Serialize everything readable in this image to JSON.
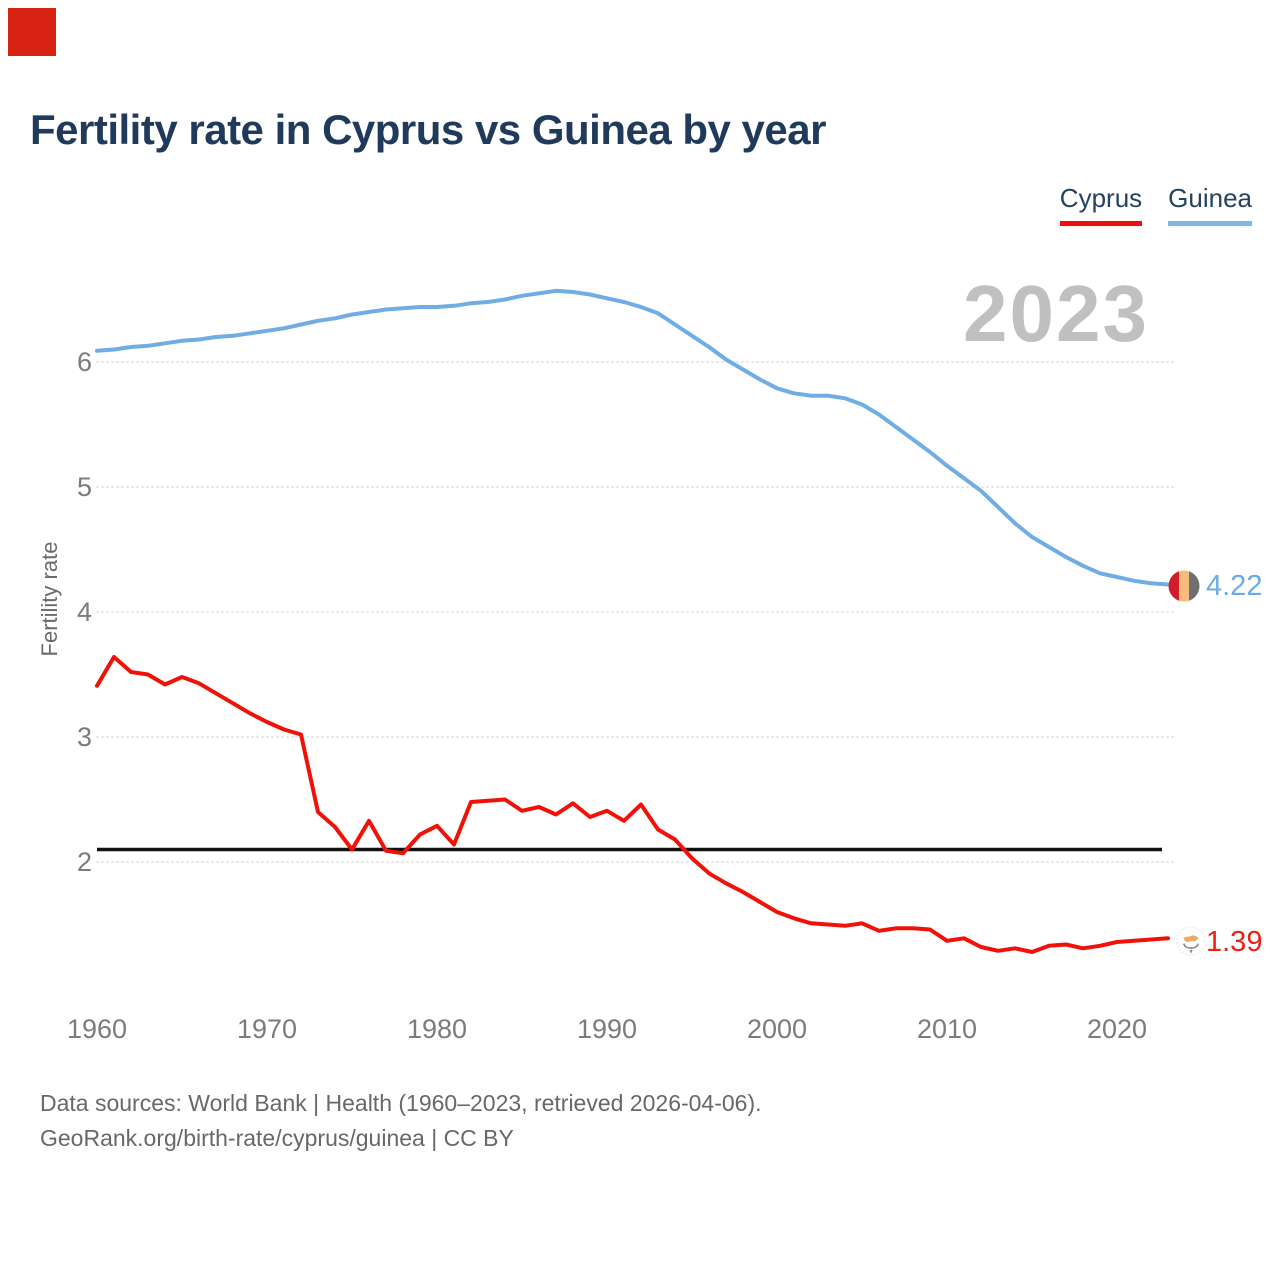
{
  "page": {
    "title": "Fertility rate in Cyprus vs Guinea by year",
    "watermark_year": "2023",
    "corner_marker_color": "#d92313",
    "footer_line1": "Data sources: World Bank | Health (1960–2023, retrieved 2026-04-06).",
    "footer_line2": "GeoRank.org/birth-rate/cyprus/guinea | CC BY"
  },
  "legend": [
    {
      "label": "Cyprus",
      "color": "#f20d0d"
    },
    {
      "label": "Guinea",
      "color": "#7cb9ea"
    }
  ],
  "chart_data": {
    "type": "line",
    "title": "Fertility rate in Cyprus vs Guinea by year",
    "xlabel": "",
    "ylabel": "Fertility rate",
    "xlim": [
      1960,
      2023
    ],
    "ylim": [
      2,
      6
    ],
    "grid": "dotted-horizontal",
    "legend_position": "top-right",
    "yticks": [
      2,
      3,
      4,
      5,
      6
    ],
    "xticks": [
      1960,
      1970,
      1980,
      1990,
      2000,
      2010,
      2020
    ],
    "x": [
      1960,
      1961,
      1962,
      1963,
      1964,
      1965,
      1966,
      1967,
      1968,
      1969,
      1970,
      1971,
      1972,
      1973,
      1974,
      1975,
      1976,
      1977,
      1978,
      1979,
      1980,
      1981,
      1982,
      1983,
      1984,
      1985,
      1986,
      1987,
      1988,
      1989,
      1990,
      1991,
      1992,
      1993,
      1994,
      1995,
      1996,
      1997,
      1998,
      1999,
      2000,
      2001,
      2002,
      2003,
      2004,
      2005,
      2006,
      2007,
      2008,
      2009,
      2010,
      2011,
      2012,
      2013,
      2014,
      2015,
      2016,
      2017,
      2018,
      2019,
      2020,
      2021,
      2022,
      2023
    ],
    "series": [
      {
        "name": "Cyprus",
        "color": "#f01108",
        "end_label": "1.39",
        "end_label_color": "#ea2114",
        "values": [
          3.41,
          3.64,
          3.52,
          3.5,
          3.42,
          3.48,
          3.43,
          3.35,
          3.27,
          3.19,
          3.12,
          3.06,
          3.02,
          2.4,
          2.28,
          2.1,
          2.33,
          2.09,
          2.07,
          2.22,
          2.29,
          2.14,
          2.48,
          2.49,
          2.5,
          2.41,
          2.44,
          2.38,
          2.47,
          2.36,
          2.41,
          2.33,
          2.46,
          2.26,
          2.18,
          2.03,
          1.91,
          1.83,
          1.76,
          1.68,
          1.6,
          1.55,
          1.51,
          1.5,
          1.49,
          1.51,
          1.45,
          1.47,
          1.47,
          1.46,
          1.37,
          1.39,
          1.32,
          1.29,
          1.31,
          1.28,
          1.33,
          1.34,
          1.31,
          1.33,
          1.36,
          1.37,
          1.38,
          1.39
        ]
      },
      {
        "name": "Guinea",
        "color": "#6fade4",
        "end_label": "4.22",
        "end_label_color": "#6babe3",
        "values": [
          6.09,
          6.1,
          6.12,
          6.13,
          6.15,
          6.17,
          6.18,
          6.2,
          6.21,
          6.23,
          6.25,
          6.27,
          6.3,
          6.33,
          6.35,
          6.38,
          6.4,
          6.42,
          6.43,
          6.44,
          6.44,
          6.45,
          6.47,
          6.48,
          6.5,
          6.53,
          6.55,
          6.57,
          6.56,
          6.54,
          6.51,
          6.48,
          6.44,
          6.39,
          6.3,
          6.21,
          6.12,
          6.02,
          5.94,
          5.86,
          5.79,
          5.75,
          5.73,
          5.73,
          5.71,
          5.66,
          5.58,
          5.48,
          5.38,
          5.28,
          5.17,
          5.07,
          4.97,
          4.84,
          4.71,
          4.6,
          4.52,
          4.44,
          4.37,
          4.31,
          4.28,
          4.25,
          4.23,
          4.22
        ]
      }
    ],
    "reference_line": {
      "value": 2.1,
      "color": "#111111"
    },
    "annotations": [
      "2023"
    ]
  }
}
